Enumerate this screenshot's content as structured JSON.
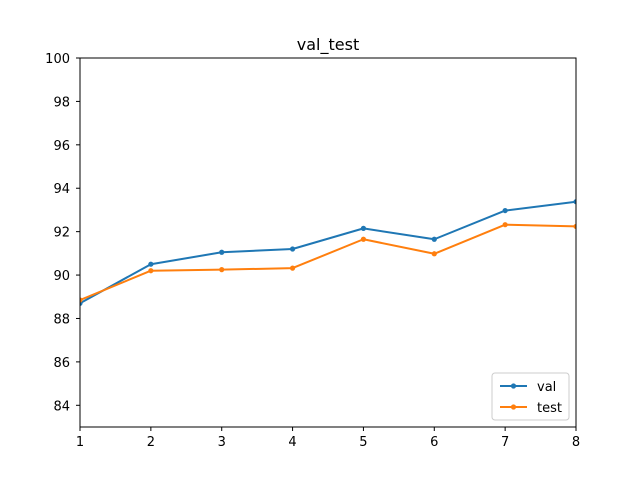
{
  "chart_data": {
    "type": "line",
    "title": "val_test",
    "xlabel": "",
    "ylabel": "",
    "x": [
      1,
      2,
      3,
      4,
      5,
      6,
      7,
      8
    ],
    "xlim": [
      1,
      8
    ],
    "ylim": [
      83,
      100
    ],
    "xticks": [
      "1",
      "2",
      "3",
      "4",
      "5",
      "6",
      "7",
      "8"
    ],
    "yticks": [
      "84",
      "86",
      "88",
      "90",
      "92",
      "94",
      "96",
      "98",
      "100"
    ],
    "grid": false,
    "legend_position": "lower-right",
    "series": [
      {
        "name": "val",
        "color": "#1f77b4",
        "values": [
          88.7,
          90.5,
          91.05,
          91.2,
          92.15,
          91.65,
          92.97,
          93.38
        ]
      },
      {
        "name": "test",
        "color": "#ff7f0e",
        "values": [
          88.85,
          90.2,
          90.25,
          90.32,
          91.65,
          90.98,
          92.32,
          92.24
        ]
      }
    ]
  }
}
